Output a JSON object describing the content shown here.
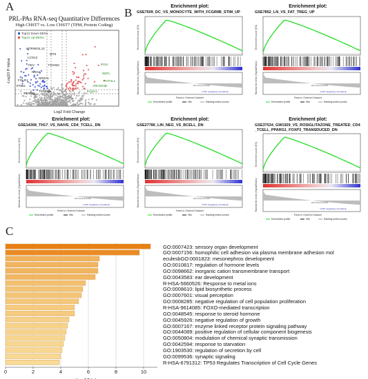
{
  "panels": {
    "a": "A",
    "b": "B",
    "c": "C"
  },
  "volcano": {
    "title": "PRL-PAs RNA-seq Quantitative Differences",
    "subtitle": "High CHST7 vs. Low CHST7 (TPM, Protein Coding)",
    "legend": [
      "Top12 Down-DEGs",
      "Top12 Up-DEGs"
    ],
    "ylabel": "-Log10 P-Value",
    "xlabel": "Log2 Fold Change",
    "down_genes": [
      "MTRNR2L12",
      "MT3",
      "LCN12",
      "FEV",
      "FOXM3",
      "NSG2",
      "NR0A1",
      "FOLR1",
      "IFNB1",
      "TSPAN8",
      "TGFB3L"
    ],
    "up_genes": [
      "IRS4",
      "NEFL",
      "PCP4L1",
      "ARHGDIB",
      "KCNA1"
    ],
    "colors": {
      "down": "#3a4fd0",
      "up": "#e04848",
      "ns": "#a0a0a0"
    }
  },
  "gsea": {
    "plot_title": "Enrichment plot:",
    "ylabel_top": "Enrichment score (ES)",
    "ylabel_bottom": "Ranked list metric (Signal2Noise)",
    "xlabel": "Rank in Ordered Dataset",
    "legend": [
      "Enrichment profile",
      "Hits",
      "Ranking metric scores"
    ],
    "pos_label": "'high' (positively correlated)",
    "neg_label": "'LOW' (negatively correlated)",
    "zero_label": "Zero cross at 16,502",
    "plots": [
      {
        "title": "GSE7509_DC_VS_MONOCYTE_WITH_FCGRIIB_STIM_UP"
      },
      {
        "title": "GSE7852_LN_VS_FAT_TREG_UP"
      },
      {
        "title": "GSE14308_TH17_VS_NAIVE_CD4_TCELL_DN"
      },
      {
        "title": "GSE27786_LIN_NEG_VS_BCELL_DN"
      },
      {
        "title": "GSE37534_GW1929_VS_ROSIGLITAZONE_TREATED_CD4_TCELL_PPARG1_FOXP3_TRANSDUCED_DN"
      }
    ],
    "colors": {
      "es": "#22dd22",
      "pos": "#e03030",
      "neg": "#3030d0"
    }
  },
  "chart_data": {
    "type": "bar",
    "orientation": "horizontal",
    "xlabel": "-log10(p)",
    "xticks": [
      0,
      2,
      4,
      6,
      8,
      10
    ],
    "xlim": [
      0,
      11
    ],
    "categories": [
      "GO:0007423: sensory organ development",
      "GO:0007156: homophilic cell adhesion via plasma membrane adhesion mol",
      "eculesbGO:0001823: mesonephros development",
      "GO:0010817: regulation of hormone levels",
      "GO:0098662: inorganic cation transmembrane transport",
      "GO:0043583: ear development",
      "R-HSA-5660526: Response to metal ions",
      "GO:0008610: lipid biosynthetic process",
      "GO:0007601: visual perception",
      "GO:0008285: negative regulation of cell population proliferation",
      "R-HSA-9614085: FOXO-mediated transcription",
      "GO:0048545: response to steroid hormone",
      "GO:0045926: negative regulation of growth",
      "GO:0007167: enzyme linked receptor protein signaling pathway",
      "GO:0044089: positive regulation of cellular component biogenesis",
      "GO:0050804: modulation of chemical synaptic transmission",
      "GO:0042594: response to starvation",
      "GO:1903530: regulation of secretion by cell",
      "GO:0099536: synaptic signaling",
      "R-HSA-6791312: TP53 Regulates Transcription of Cell Cycle Genes"
    ],
    "values": [
      10.5,
      9.7,
      6.8,
      6.7,
      6.7,
      6.5,
      5.8,
      5.6,
      5.5,
      5.3,
      5.0,
      5.0,
      4.6,
      4.5,
      4.4,
      4.3,
      4.2,
      4.1,
      4.0,
      3.9
    ]
  }
}
